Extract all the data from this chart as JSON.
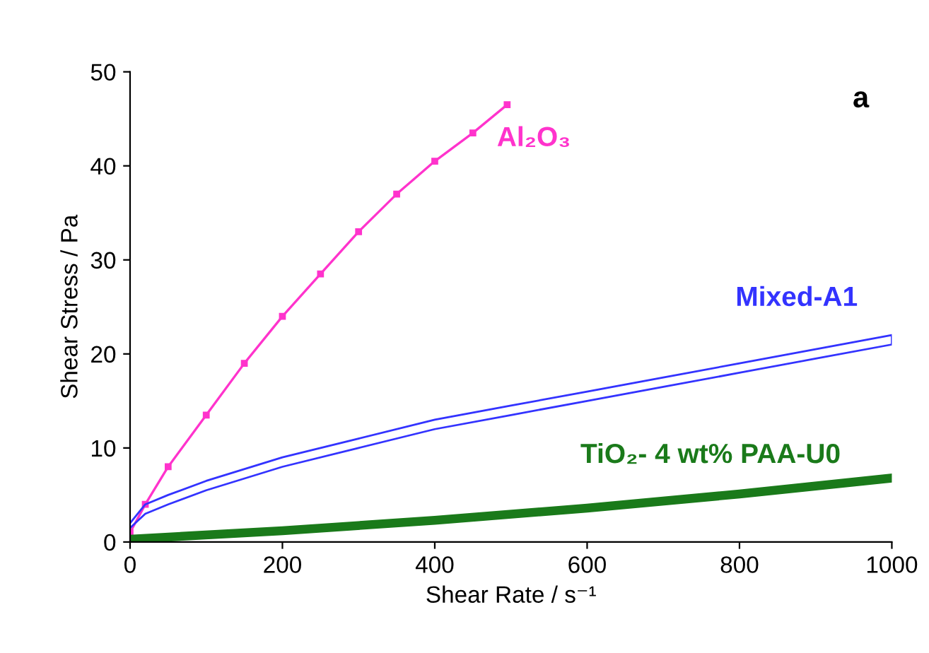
{
  "chart_data": {
    "type": "line",
    "xlabel": "Shear Rate / s⁻¹",
    "ylabel": "Shear Stress / Pa",
    "xlim": [
      0,
      1000
    ],
    "ylim": [
      0,
      50
    ],
    "xticks": [
      0,
      200,
      400,
      600,
      800,
      1000
    ],
    "yticks": [
      0,
      10,
      20,
      30,
      40,
      50
    ],
    "grid": false,
    "legend": false,
    "annotations": [
      "a"
    ],
    "series": [
      {
        "name": "Al₂O₃",
        "color": "#ff33cc",
        "marker": "square",
        "x": [
          0,
          20,
          50,
          100,
          150,
          200,
          250,
          300,
          350,
          400,
          450,
          495
        ],
        "values": [
          1,
          4,
          8,
          13.5,
          19,
          24,
          28.5,
          33,
          37,
          40.5,
          43.5,
          46.5
        ]
      },
      {
        "name": "Mixed-A1",
        "color": "#3333ff",
        "marker": "none",
        "x": [
          0,
          20,
          50,
          100,
          200,
          300,
          400,
          500,
          600,
          700,
          800,
          900,
          1000,
          1000,
          900,
          800,
          700,
          600,
          500,
          400,
          300,
          200,
          100,
          50,
          20,
          0
        ],
        "values": [
          2,
          4,
          5,
          6.5,
          9,
          11,
          13,
          14.5,
          16,
          17.5,
          19,
          20.5,
          22,
          21,
          19.5,
          18,
          16.5,
          15,
          13.5,
          12,
          10,
          8,
          5.5,
          4,
          3,
          1.5
        ]
      },
      {
        "name": "TiO₂- 4 wt% PAA-U0",
        "color": "#1a7a1a",
        "marker": "none",
        "x": [
          0,
          200,
          400,
          600,
          800,
          1000
        ],
        "values": [
          0.3,
          1.2,
          2.3,
          3.6,
          5.1,
          6.8
        ]
      }
    ]
  }
}
